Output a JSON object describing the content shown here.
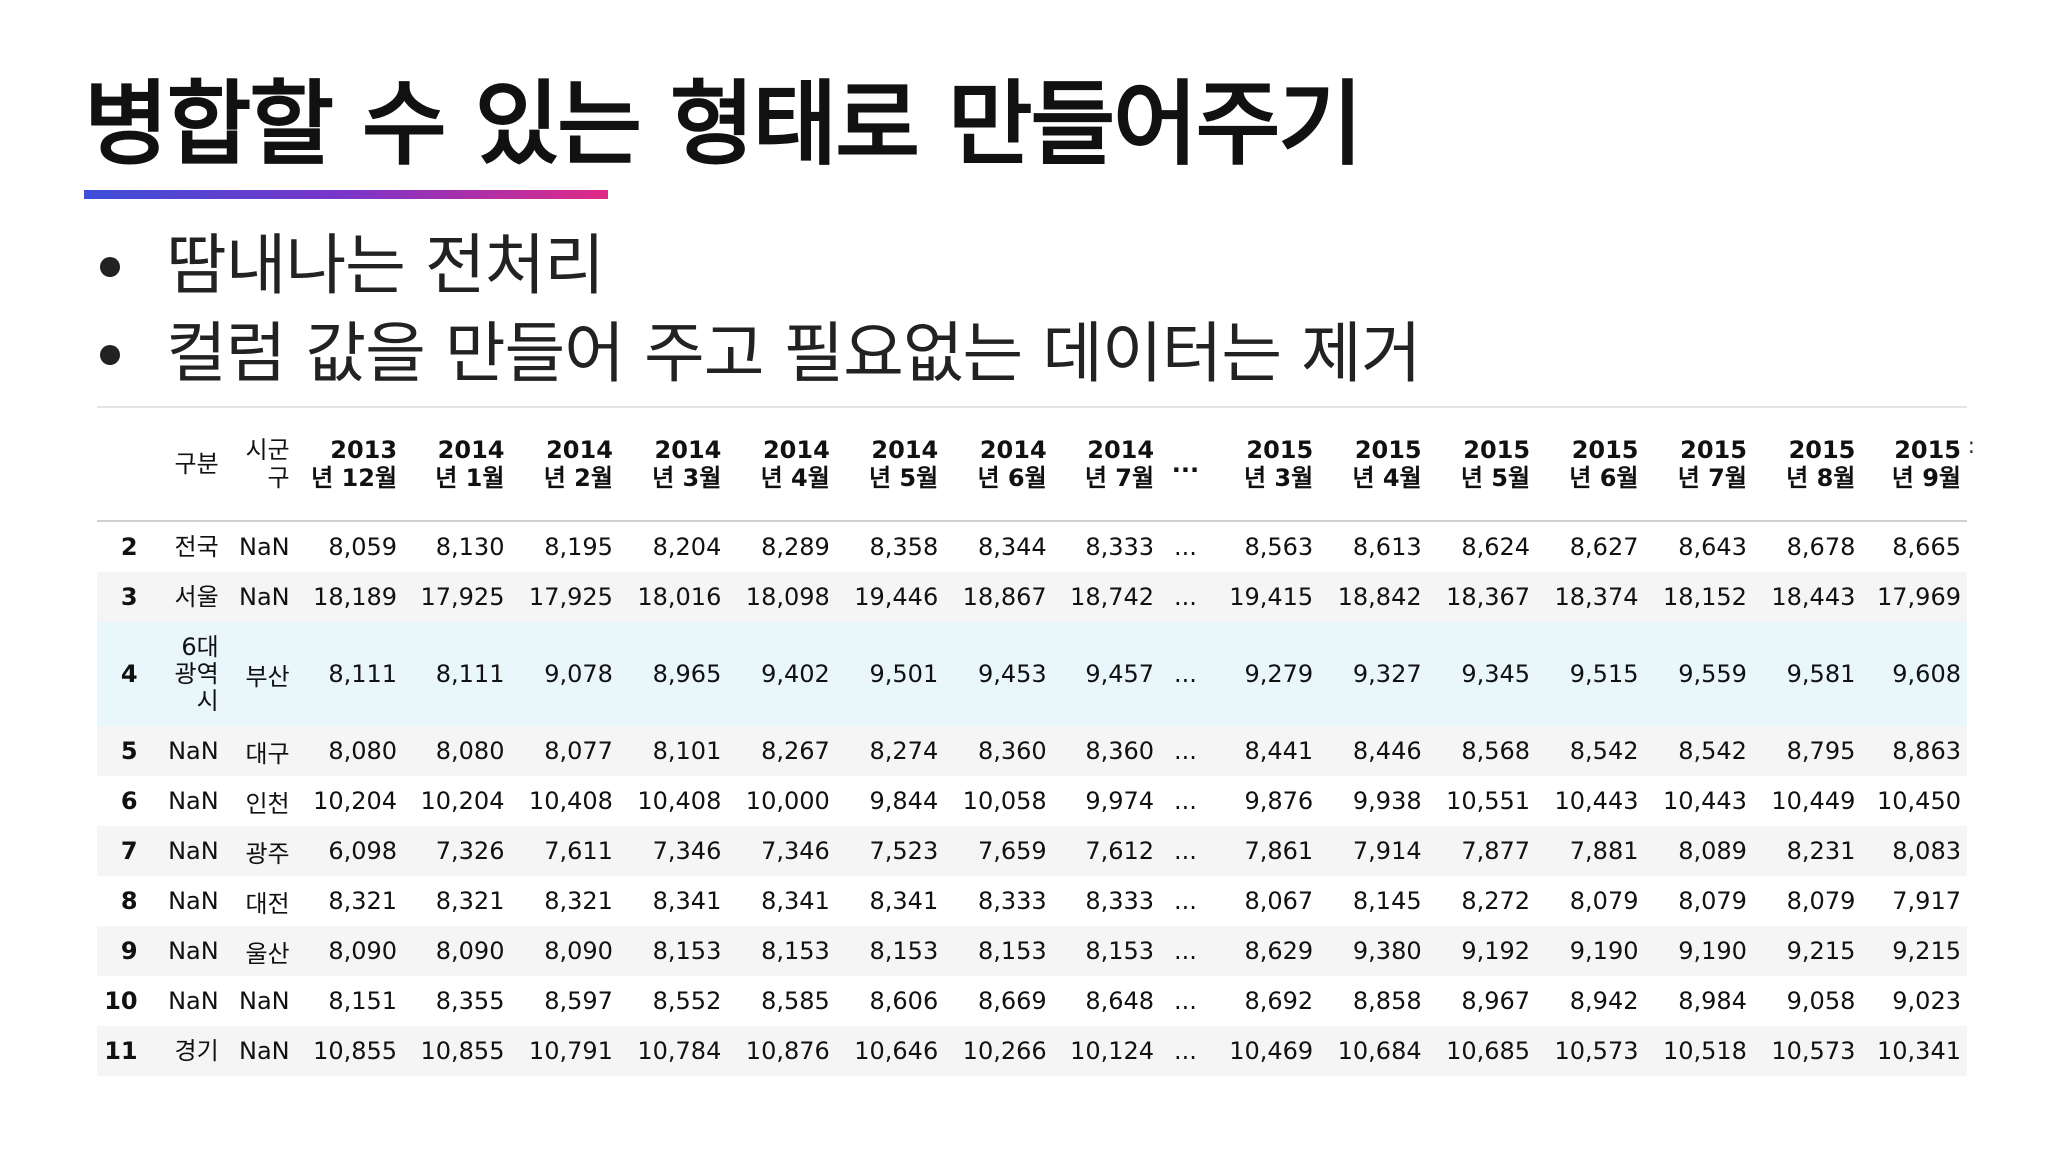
{
  "slide": {
    "title": "병합할 수 있는 형태로 만들어주기",
    "bullets": [
      "땀내나는 전처리",
      "컬럼 값을 만들어 주고 필요없는 데이터는 제거"
    ]
  },
  "colors": {
    "underline_gradient": [
      "#3d4fd8",
      "#7a35c9",
      "#e02a86"
    ],
    "row_hover": "#e9f6fa",
    "row_stripe": "#f5f5f5"
  },
  "table": {
    "headers": [
      {
        "l1": "구분",
        "l2": ""
      },
      {
        "l1": "시군",
        "l2": "구"
      },
      {
        "l1": "2013",
        "l2": "년 12월"
      },
      {
        "l1": "2014",
        "l2": "년 1월"
      },
      {
        "l1": "2014",
        "l2": "년 2월"
      },
      {
        "l1": "2014",
        "l2": "년 3월"
      },
      {
        "l1": "2014",
        "l2": "년 4월"
      },
      {
        "l1": "2014",
        "l2": "년 5월"
      },
      {
        "l1": "2014",
        "l2": "년 6월"
      },
      {
        "l1": "2014",
        "l2": "년 7월"
      },
      {
        "l1": "...",
        "l2": ""
      },
      {
        "l1": "2015",
        "l2": "년 3월"
      },
      {
        "l1": "2015",
        "l2": "년 4월"
      },
      {
        "l1": "2015",
        "l2": "년 5월"
      },
      {
        "l1": "2015",
        "l2": "년 6월"
      },
      {
        "l1": "2015",
        "l2": "년 7월"
      },
      {
        "l1": "2015",
        "l2": "년 8월"
      },
      {
        "l1": "2015",
        "l2": "년 9월"
      }
    ],
    "rows": [
      {
        "idx": "2",
        "region": [
          "전국"
        ],
        "sub": "NaN",
        "values": [
          "8,059",
          "8,130",
          "8,195",
          "8,204",
          "8,289",
          "8,358",
          "8,344",
          "8,333",
          "...",
          "8,563",
          "8,613",
          "8,624",
          "8,627",
          "8,643",
          "8,678",
          "8,665"
        ]
      },
      {
        "idx": "3",
        "region": [
          "서울"
        ],
        "sub": "NaN",
        "values": [
          "18,189",
          "17,925",
          "17,925",
          "18,016",
          "18,098",
          "19,446",
          "18,867",
          "18,742",
          "...",
          "19,415",
          "18,842",
          "18,367",
          "18,374",
          "18,152",
          "18,443",
          "17,969"
        ]
      },
      {
        "idx": "4",
        "region": [
          "6대",
          "광역",
          "시"
        ],
        "sub": "부산",
        "values": [
          "8,111",
          "8,111",
          "9,078",
          "8,965",
          "9,402",
          "9,501",
          "9,453",
          "9,457",
          "...",
          "9,279",
          "9,327",
          "9,345",
          "9,515",
          "9,559",
          "9,581",
          "9,608"
        ]
      },
      {
        "idx": "5",
        "region": [
          "NaN"
        ],
        "sub": "대구",
        "values": [
          "8,080",
          "8,080",
          "8,077",
          "8,101",
          "8,267",
          "8,274",
          "8,360",
          "8,360",
          "...",
          "8,441",
          "8,446",
          "8,568",
          "8,542",
          "8,542",
          "8,795",
          "8,863"
        ]
      },
      {
        "idx": "6",
        "region": [
          "NaN"
        ],
        "sub": "인천",
        "values": [
          "10,204",
          "10,204",
          "10,408",
          "10,408",
          "10,000",
          "9,844",
          "10,058",
          "9,974",
          "...",
          "9,876",
          "9,938",
          "10,551",
          "10,443",
          "10,443",
          "10,449",
          "10,450"
        ]
      },
      {
        "idx": "7",
        "region": [
          "NaN"
        ],
        "sub": "광주",
        "values": [
          "6,098",
          "7,326",
          "7,611",
          "7,346",
          "7,346",
          "7,523",
          "7,659",
          "7,612",
          "...",
          "7,861",
          "7,914",
          "7,877",
          "7,881",
          "8,089",
          "8,231",
          "8,083"
        ]
      },
      {
        "idx": "8",
        "region": [
          "NaN"
        ],
        "sub": "대전",
        "values": [
          "8,321",
          "8,321",
          "8,321",
          "8,341",
          "8,341",
          "8,341",
          "8,333",
          "8,333",
          "...",
          "8,067",
          "8,145",
          "8,272",
          "8,079",
          "8,079",
          "8,079",
          "7,917"
        ]
      },
      {
        "idx": "9",
        "region": [
          "NaN"
        ],
        "sub": "울산",
        "values": [
          "8,090",
          "8,090",
          "8,090",
          "8,153",
          "8,153",
          "8,153",
          "8,153",
          "8,153",
          "...",
          "8,629",
          "9,380",
          "9,192",
          "9,190",
          "9,190",
          "9,215",
          "9,215"
        ]
      },
      {
        "idx": "10",
        "region": [
          "NaN"
        ],
        "sub": "NaN",
        "values": [
          "8,151",
          "8,355",
          "8,597",
          "8,552",
          "8,585",
          "8,606",
          "8,669",
          "8,648",
          "...",
          "8,692",
          "8,858",
          "8,967",
          "8,942",
          "8,984",
          "9,058",
          "9,023"
        ]
      },
      {
        "idx": "11",
        "region": [
          "경기"
        ],
        "sub": "NaN",
        "values": [
          "10,855",
          "10,855",
          "10,791",
          "10,784",
          "10,876",
          "10,646",
          "10,266",
          "10,124",
          "...",
          "10,469",
          "10,684",
          "10,685",
          "10,573",
          "10,518",
          "10,573",
          "10,341"
        ]
      }
    ]
  }
}
